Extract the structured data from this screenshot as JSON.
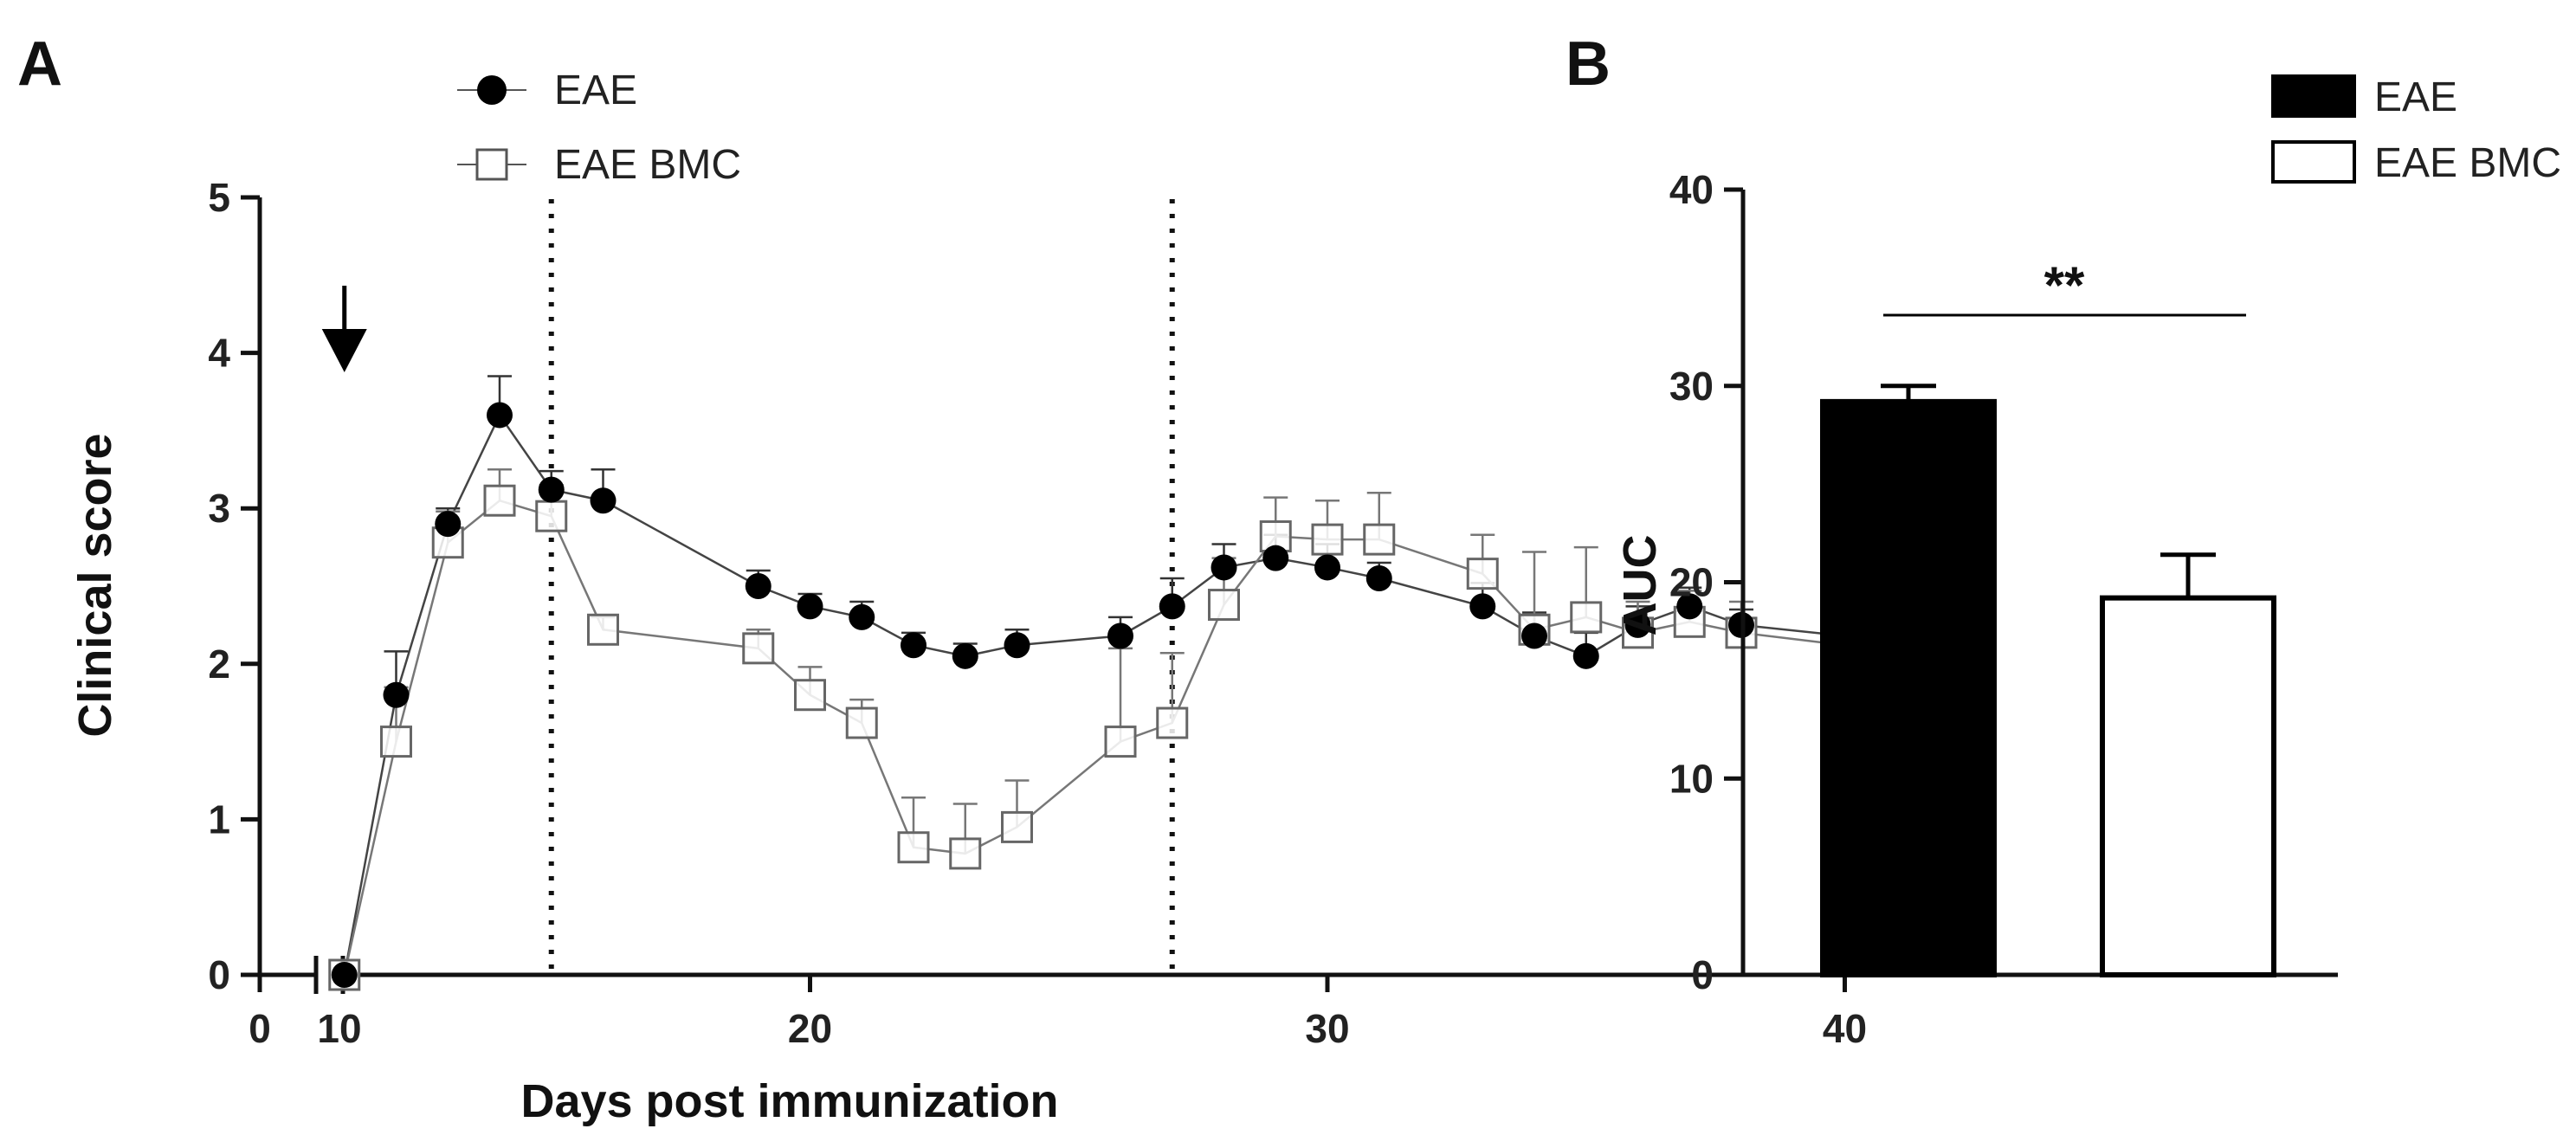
{
  "chart_data": [
    {
      "panel": "A",
      "type": "line",
      "xlabel": "Days post immunization",
      "ylabel": "Clinical score",
      "xlim": [
        0,
        40
      ],
      "ylim": [
        0,
        5
      ],
      "x_ticks": [
        "0",
        "10",
        "20",
        "30",
        "40"
      ],
      "y_ticks": [
        "0",
        "1",
        "2",
        "3",
        "4",
        "5"
      ],
      "axis_break": true,
      "arrow_day": 11,
      "dotted_lines_days": [
        15,
        27
      ],
      "legend": [
        "EAE",
        "EAE BMC"
      ],
      "series": [
        {
          "name": "EAE",
          "marker": "filled-circle",
          "x": [
            11,
            12,
            13,
            14,
            15,
            16,
            19,
            20,
            21,
            22,
            23,
            24,
            26,
            27,
            28,
            29,
            30,
            31,
            33,
            34,
            35,
            36,
            37,
            38,
            40
          ],
          "y": [
            0,
            1.8,
            2.9,
            3.6,
            3.12,
            3.05,
            2.5,
            2.37,
            2.3,
            2.12,
            2.05,
            2.12,
            2.18,
            2.37,
            2.62,
            2.68,
            2.62,
            2.55,
            2.37,
            2.18,
            2.05,
            2.25,
            2.37,
            2.25,
            2.18
          ],
          "error": [
            0,
            0.28,
            0.1,
            0.25,
            0.12,
            0.2,
            0.1,
            0.08,
            0.1,
            0.08,
            0.08,
            0.1,
            0.12,
            0.18,
            0.15,
            0.15,
            0.15,
            0.1,
            0.15,
            0.15,
            0.15,
            0.12,
            0.12,
            0.1,
            0.15
          ]
        },
        {
          "name": "EAE BMC",
          "marker": "open-square",
          "x": [
            11,
            12,
            13,
            14,
            15,
            16,
            19,
            20,
            21,
            22,
            23,
            24,
            26,
            27,
            28,
            29,
            30,
            31,
            33,
            34,
            35,
            36,
            37,
            38,
            40
          ],
          "y": [
            0,
            1.5,
            2.78,
            3.05,
            2.95,
            2.22,
            2.1,
            1.8,
            1.62,
            0.82,
            0.78,
            0.95,
            1.5,
            1.62,
            2.38,
            2.82,
            2.8,
            2.8,
            2.58,
            2.22,
            2.3,
            2.2,
            2.27,
            2.2,
            2.12
          ],
          "error": [
            0,
            0.35,
            0.2,
            0.2,
            0.2,
            0.08,
            0.12,
            0.18,
            0.15,
            0.32,
            0.32,
            0.3,
            0.6,
            0.45,
            0.3,
            0.25,
            0.25,
            0.3,
            0.25,
            0.5,
            0.45,
            0.2,
            0.2,
            0.2,
            0.2
          ]
        }
      ]
    },
    {
      "panel": "B",
      "type": "bar",
      "ylabel": "AUC",
      "ylim": [
        0,
        40
      ],
      "y_ticks": [
        "0",
        "10",
        "20",
        "30",
        "40"
      ],
      "categories": [
        "EAE",
        "EAE BMC"
      ],
      "values": [
        29.2,
        19.2
      ],
      "errors": [
        0.8,
        2.2
      ],
      "fills": [
        "#000000",
        "#ffffff"
      ],
      "legend": [
        "EAE",
        "EAE BMC"
      ],
      "significance": "**"
    }
  ]
}
